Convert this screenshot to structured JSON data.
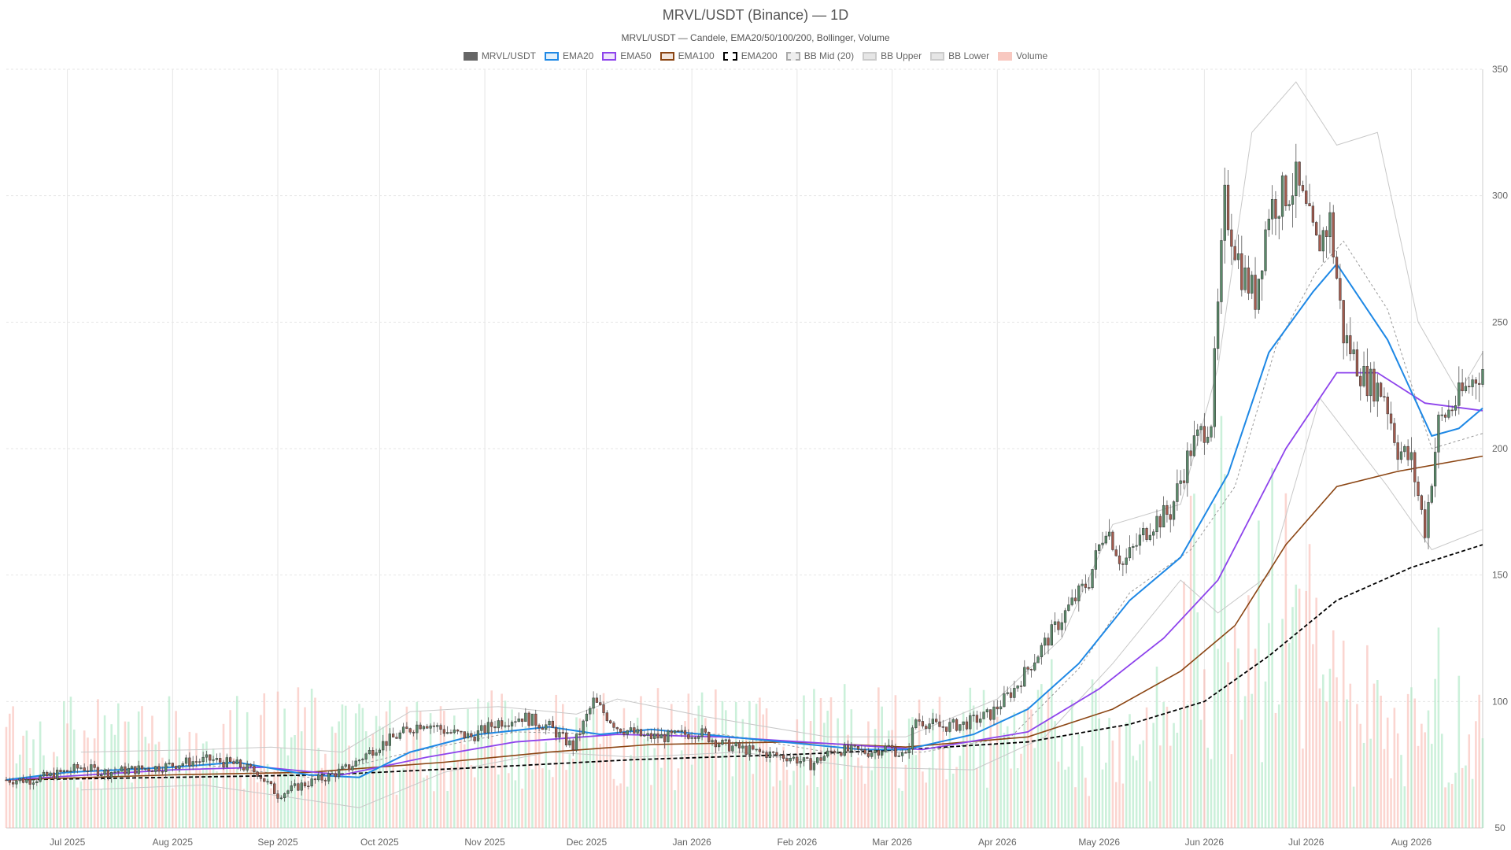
{
  "chart_data": {
    "type": "candlestick",
    "title": "MRVL/USDT (Binance) — 1D",
    "subtitle": "MRVL/USDT — Candele, EMA20/50/100/200, Bollinger, Volume",
    "legend": [
      {
        "name": "MRVL/USDT",
        "fill": "#666666",
        "stroke": "#666666",
        "dash": false
      },
      {
        "name": "EMA20",
        "fill": "#e3f0fb",
        "stroke": "#1e88e5",
        "dash": false
      },
      {
        "name": "EMA50",
        "fill": "#efe6fb",
        "stroke": "#8e44ec",
        "dash": false
      },
      {
        "name": "EMA100",
        "fill": "#f3e5dc",
        "stroke": "#8b4513",
        "dash": false
      },
      {
        "name": "EMA200",
        "fill": "#ffffff",
        "stroke": "#000000",
        "dash": true
      },
      {
        "name": "BB Mid (20)",
        "fill": "#eeeeee",
        "stroke": "#aaaaaa",
        "dash": true
      },
      {
        "name": "BB Upper",
        "fill": "#e6e6e6",
        "stroke": "#cccccc",
        "dash": false
      },
      {
        "name": "BB Lower",
        "fill": "#e6e6e6",
        "stroke": "#cccccc",
        "dash": false
      },
      {
        "name": "Volume",
        "fill": "#f8c8c0",
        "stroke": "#f8c8c0",
        "dash": false
      }
    ],
    "y_axis": {
      "min": 50,
      "max": 350,
      "ticks": [
        50,
        100,
        150,
        200,
        250,
        300,
        350
      ],
      "position": "right"
    },
    "x_axis": {
      "start": "2025-06-13",
      "end": "2026-08-22",
      "ticks": [
        {
          "label": "Jul 2025",
          "date": "2025-07-01"
        },
        {
          "label": "Aug 2025",
          "date": "2025-08-01"
        },
        {
          "label": "Sep 2025",
          "date": "2025-09-01"
        },
        {
          "label": "Oct 2025",
          "date": "2025-10-01"
        },
        {
          "label": "Nov 2025",
          "date": "2025-11-01"
        },
        {
          "label": "Dec 2025",
          "date": "2025-12-01"
        },
        {
          "label": "Jan 2026",
          "date": "2026-01-01"
        },
        {
          "label": "Feb 2026",
          "date": "2026-02-01"
        },
        {
          "label": "Mar 2026",
          "date": "2026-03-01"
        },
        {
          "label": "Apr 2026",
          "date": "2026-04-01"
        },
        {
          "label": "May 2026",
          "date": "2026-05-01"
        },
        {
          "label": "Jun 2026",
          "date": "2026-06-01"
        },
        {
          "label": "Jul 2026",
          "date": "2026-07-01"
        },
        {
          "label": "Aug 2026",
          "date": "2026-08-01"
        }
      ]
    },
    "close_path": [
      [
        "2025-06-13",
        69
      ],
      [
        "2025-06-20",
        69
      ],
      [
        "2025-06-27",
        71
      ],
      [
        "2025-07-05",
        74
      ],
      [
        "2025-07-12",
        72
      ],
      [
        "2025-07-20",
        73
      ],
      [
        "2025-07-28",
        74
      ],
      [
        "2025-08-05",
        76
      ],
      [
        "2025-08-12",
        77
      ],
      [
        "2025-08-20",
        75
      ],
      [
        "2025-08-26",
        72
      ],
      [
        "2025-09-01",
        63
      ],
      [
        "2025-09-08",
        67
      ],
      [
        "2025-09-15",
        70
      ],
      [
        "2025-09-22",
        74
      ],
      [
        "2025-09-30",
        82
      ],
      [
        "2025-10-07",
        87
      ],
      [
        "2025-10-14",
        92
      ],
      [
        "2025-10-21",
        88
      ],
      [
        "2025-10-28",
        86
      ],
      [
        "2025-11-05",
        92
      ],
      [
        "2025-11-12",
        94
      ],
      [
        "2025-11-20",
        90
      ],
      [
        "2025-11-27",
        82
      ],
      [
        "2025-12-03",
        100
      ],
      [
        "2025-12-10",
        90
      ],
      [
        "2025-12-18",
        86
      ],
      [
        "2025-12-25",
        86
      ],
      [
        "2026-01-03",
        88
      ],
      [
        "2026-01-10",
        83
      ],
      [
        "2026-01-20",
        80
      ],
      [
        "2026-01-30",
        78
      ],
      [
        "2026-02-05",
        75
      ],
      [
        "2026-02-12",
        81
      ],
      [
        "2026-02-22",
        80
      ],
      [
        "2026-02-28",
        82
      ],
      [
        "2026-03-05",
        78
      ],
      [
        "2026-03-08",
        93
      ],
      [
        "2026-03-15",
        90
      ],
      [
        "2026-03-22",
        91
      ],
      [
        "2026-03-30",
        95
      ],
      [
        "2026-04-06",
        105
      ],
      [
        "2026-04-15",
        123
      ],
      [
        "2026-04-22",
        137
      ],
      [
        "2026-04-28",
        148
      ],
      [
        "2026-05-03",
        170
      ],
      [
        "2026-05-08",
        154
      ],
      [
        "2026-05-16",
        170
      ],
      [
        "2026-05-22",
        175
      ],
      [
        "2026-05-28",
        200
      ],
      [
        "2026-06-03",
        212
      ],
      [
        "2026-06-07",
        297
      ],
      [
        "2026-06-12",
        270
      ],
      [
        "2026-06-16",
        260
      ],
      [
        "2026-06-20",
        295
      ],
      [
        "2026-06-24",
        300
      ],
      [
        "2026-06-28",
        305
      ],
      [
        "2026-07-04",
        280
      ],
      [
        "2026-07-08",
        290
      ],
      [
        "2026-07-12",
        245
      ],
      [
        "2026-07-18",
        228
      ],
      [
        "2026-07-24",
        222
      ],
      [
        "2026-07-28",
        200
      ],
      [
        "2026-08-01",
        195
      ],
      [
        "2026-08-05",
        168
      ],
      [
        "2026-08-09",
        210
      ],
      [
        "2026-08-15",
        220
      ],
      [
        "2026-08-22",
        232
      ]
    ],
    "ema20": [
      [
        "2025-06-13",
        69
      ],
      [
        "2025-07-01",
        72
      ],
      [
        "2025-08-01",
        74
      ],
      [
        "2025-08-20",
        76
      ],
      [
        "2025-09-10",
        71
      ],
      [
        "2025-09-25",
        70
      ],
      [
        "2025-10-10",
        80
      ],
      [
        "2025-10-30",
        87
      ],
      [
        "2025-11-20",
        90
      ],
      [
        "2025-12-05",
        87
      ],
      [
        "2025-12-20",
        89
      ],
      [
        "2026-01-20",
        85
      ],
      [
        "2026-02-20",
        81
      ],
      [
        "2026-03-05",
        81
      ],
      [
        "2026-03-25",
        87
      ],
      [
        "2026-04-10",
        97
      ],
      [
        "2026-04-25",
        115
      ],
      [
        "2026-05-10",
        140
      ],
      [
        "2026-05-25",
        157
      ],
      [
        "2026-06-08",
        190
      ],
      [
        "2026-06-20",
        238
      ],
      [
        "2026-07-03",
        262
      ],
      [
        "2026-07-10",
        273
      ],
      [
        "2026-07-25",
        243
      ],
      [
        "2026-08-07",
        205
      ],
      [
        "2026-08-15",
        208
      ],
      [
        "2026-08-22",
        216
      ]
    ],
    "ema50": [
      [
        "2025-06-13",
        69
      ],
      [
        "2025-08-01",
        73
      ],
      [
        "2025-08-28",
        74
      ],
      [
        "2025-09-20",
        71
      ],
      [
        "2025-10-15",
        78
      ],
      [
        "2025-11-10",
        84
      ],
      [
        "2025-12-10",
        87
      ],
      [
        "2026-01-10",
        86
      ],
      [
        "2026-02-15",
        83
      ],
      [
        "2026-03-10",
        81
      ],
      [
        "2026-04-10",
        88
      ],
      [
        "2026-05-01",
        105
      ],
      [
        "2026-05-20",
        125
      ],
      [
        "2026-06-05",
        148
      ],
      [
        "2026-06-25",
        200
      ],
      [
        "2026-07-10",
        230
      ],
      [
        "2026-07-22",
        230
      ],
      [
        "2026-08-05",
        218
      ],
      [
        "2026-08-22",
        215
      ]
    ],
    "ema100": [
      [
        "2025-06-13",
        69
      ],
      [
        "2025-08-01",
        71
      ],
      [
        "2025-09-10",
        72
      ],
      [
        "2025-10-20",
        76
      ],
      [
        "2025-11-20",
        80
      ],
      [
        "2025-12-20",
        83
      ],
      [
        "2026-01-30",
        84
      ],
      [
        "2026-03-05",
        82
      ],
      [
        "2026-04-10",
        86
      ],
      [
        "2026-05-05",
        97
      ],
      [
        "2026-05-25",
        112
      ],
      [
        "2026-06-10",
        130
      ],
      [
        "2026-06-25",
        162
      ],
      [
        "2026-07-10",
        185
      ],
      [
        "2026-07-28",
        191
      ],
      [
        "2026-08-22",
        197
      ]
    ],
    "ema200": [
      [
        "2025-06-13",
        69
      ],
      [
        "2025-08-01",
        70
      ],
      [
        "2025-09-15",
        71
      ],
      [
        "2025-11-01",
        74
      ],
      [
        "2025-12-15",
        77
      ],
      [
        "2026-01-30",
        79
      ],
      [
        "2026-03-05",
        81
      ],
      [
        "2026-04-10",
        84
      ],
      [
        "2026-05-10",
        91
      ],
      [
        "2026-06-01",
        100
      ],
      [
        "2026-06-20",
        118
      ],
      [
        "2026-07-10",
        140
      ],
      [
        "2026-08-01",
        153
      ],
      [
        "2026-08-22",
        162
      ]
    ],
    "bb_mid": [
      [
        "2025-06-13",
        69
      ],
      [
        "2025-07-10",
        73
      ],
      [
        "2025-08-10",
        75
      ],
      [
        "2025-09-10",
        70
      ],
      [
        "2025-10-10",
        80
      ],
      [
        "2025-11-10",
        88
      ],
      [
        "2025-12-10",
        87
      ],
      [
        "2026-01-10",
        87
      ],
      [
        "2026-02-10",
        80
      ],
      [
        "2026-03-10",
        80
      ],
      [
        "2026-04-05",
        86
      ],
      [
        "2026-04-25",
        113
      ],
      [
        "2026-05-10",
        143
      ],
      [
        "2026-05-28",
        160
      ],
      [
        "2026-06-10",
        185
      ],
      [
        "2026-06-22",
        240
      ],
      [
        "2026-07-04",
        270
      ],
      [
        "2026-07-12",
        282
      ],
      [
        "2026-07-25",
        255
      ],
      [
        "2026-08-07",
        200
      ],
      [
        "2026-08-22",
        206
      ]
    ],
    "bb_upper": [
      [
        "2025-07-05",
        80
      ],
      [
        "2025-08-10",
        81
      ],
      [
        "2025-08-30",
        82
      ],
      [
        "2025-09-20",
        80
      ],
      [
        "2025-10-10",
        96
      ],
      [
        "2025-11-05",
        98
      ],
      [
        "2025-11-28",
        95
      ],
      [
        "2025-12-10",
        101
      ],
      [
        "2026-01-05",
        94
      ],
      [
        "2026-02-10",
        86
      ],
      [
        "2026-03-05",
        86
      ],
      [
        "2026-04-01",
        101
      ],
      [
        "2026-04-20",
        125
      ],
      [
        "2026-05-05",
        170
      ],
      [
        "2026-05-25",
        178
      ],
      [
        "2026-06-05",
        232
      ],
      [
        "2026-06-15",
        325
      ],
      [
        "2026-06-28",
        345
      ],
      [
        "2026-07-10",
        320
      ],
      [
        "2026-07-22",
        325
      ],
      [
        "2026-08-03",
        250
      ],
      [
        "2026-08-15",
        222
      ],
      [
        "2026-08-22",
        238
      ]
    ],
    "bb_lower": [
      [
        "2025-07-05",
        65
      ],
      [
        "2025-08-10",
        67
      ],
      [
        "2025-09-05",
        62
      ],
      [
        "2025-09-25",
        58
      ],
      [
        "2025-10-20",
        72
      ],
      [
        "2025-11-20",
        80
      ],
      [
        "2025-12-15",
        78
      ],
      [
        "2026-01-15",
        80
      ],
      [
        "2026-02-20",
        74
      ],
      [
        "2026-03-25",
        73
      ],
      [
        "2026-04-15",
        86
      ],
      [
        "2026-05-05",
        115
      ],
      [
        "2026-05-25",
        148
      ],
      [
        "2026-06-05",
        135
      ],
      [
        "2026-06-20",
        150
      ],
      [
        "2026-07-05",
        220
      ],
      [
        "2026-07-25",
        185
      ],
      [
        "2026-08-07",
        160
      ],
      [
        "2026-08-22",
        168
      ]
    ],
    "volume_axis": {
      "min": 0,
      "max": 300
    }
  }
}
